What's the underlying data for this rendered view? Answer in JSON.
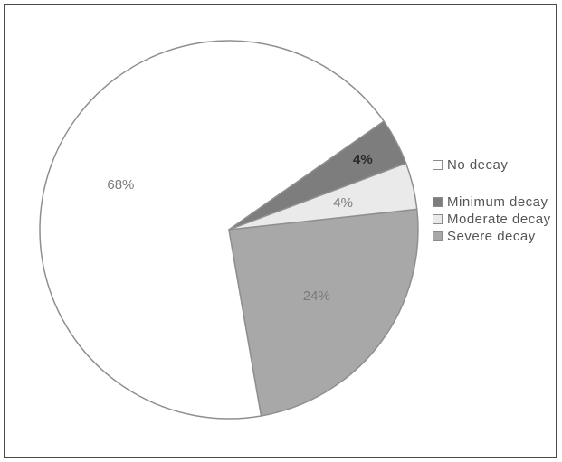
{
  "chart_data": {
    "type": "pie",
    "title": "",
    "slices": [
      {
        "label": "No decay",
        "value": 68,
        "display": "68%",
        "color": "#ffffff"
      },
      {
        "label": "Severe decay",
        "value": 24,
        "display": "24%",
        "color": "#a8a8a8"
      },
      {
        "label": "Moderate decay",
        "value": 4,
        "display": "4%",
        "color": "#eaeaea"
      },
      {
        "label": "Minimum decay",
        "value": 4,
        "display": "4%",
        "color": "#7d7d7d"
      }
    ],
    "legend": [
      {
        "label": "No decay",
        "color": "#ffffff"
      },
      {
        "label": "Minimum decay",
        "color": "#7d7d7d"
      },
      {
        "label": "Moderate decay",
        "color": "#eaeaea"
      },
      {
        "label": "Severe decay",
        "color": "#a8a8a8"
      }
    ],
    "legend_position": "right",
    "start_angle_deg": 35,
    "direction": "counterclockwise"
  }
}
